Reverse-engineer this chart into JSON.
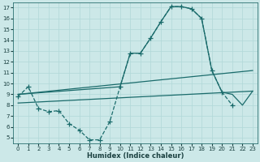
{
  "background_color": "#cce8e8",
  "grid_color": "#b0d8d8",
  "line_color": "#1a6b6b",
  "xlabel": "Humidex (Indice chaleur)",
  "xlim": [
    -0.5,
    23.5
  ],
  "ylim": [
    4.5,
    17.5
  ],
  "xticks": [
    0,
    1,
    2,
    3,
    4,
    5,
    6,
    7,
    8,
    9,
    10,
    11,
    12,
    13,
    14,
    15,
    16,
    17,
    18,
    19,
    20,
    21,
    22,
    23
  ],
  "yticks": [
    5,
    6,
    7,
    8,
    9,
    10,
    11,
    12,
    13,
    14,
    15,
    16,
    17
  ],
  "line1_x": [
    0,
    1,
    2,
    3,
    4,
    5,
    6,
    7,
    8,
    9,
    10,
    11,
    12,
    13,
    14,
    15,
    16,
    17,
    18,
    19,
    20,
    21
  ],
  "line1_y": [
    8.8,
    9.7,
    7.7,
    7.4,
    7.5,
    6.3,
    5.7,
    4.8,
    4.8,
    6.5,
    9.7,
    12.8,
    12.8,
    14.2,
    15.7,
    17.1,
    17.1,
    16.9,
    16.0,
    11.2,
    9.2,
    8.0
  ],
  "line2_x": [
    0,
    10,
    11,
    12,
    13,
    14,
    15,
    16,
    17,
    18,
    19,
    20,
    21,
    22,
    23
  ],
  "line2_y": [
    9.0,
    9.7,
    12.8,
    12.8,
    14.2,
    15.7,
    17.1,
    17.1,
    16.9,
    16.0,
    11.2,
    9.2,
    9.0,
    8.0,
    9.3
  ],
  "line3_x": [
    0,
    23
  ],
  "line3_y": [
    9.0,
    11.2
  ],
  "line4_x": [
    0,
    23
  ],
  "line4_y": [
    8.2,
    9.3
  ]
}
